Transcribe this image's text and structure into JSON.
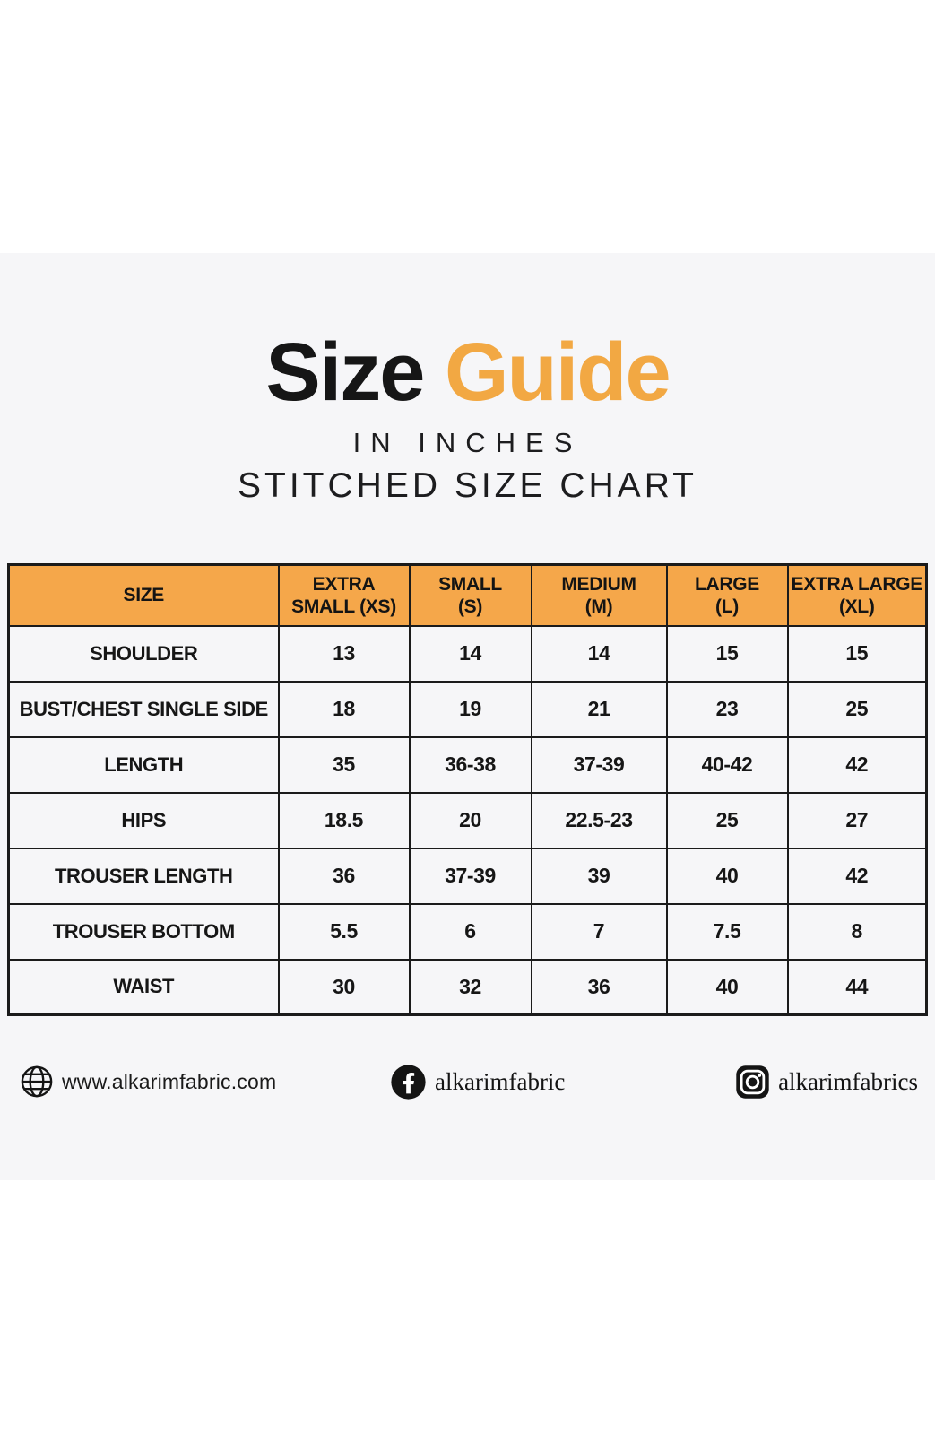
{
  "colors": {
    "accent": "#F2A843",
    "header_bg": "#F5A74A",
    "panel_bg": "#F6F6F8",
    "ink": "#161616",
    "border": "#1B1B1B"
  },
  "title": {
    "word_black": "Size",
    "word_accent": "Guide",
    "subtitle_1": "IN INCHES",
    "subtitle_2": "STITCHED SIZE CHART"
  },
  "table": {
    "header": [
      {
        "line1": "SIZE",
        "line2": ""
      },
      {
        "line1": "EXTRA",
        "line2": "SMALL (XS)"
      },
      {
        "line1": "SMALL",
        "line2": "(S)"
      },
      {
        "line1": "MEDIUM",
        "line2": "(M)"
      },
      {
        "line1": "LARGE",
        "line2": "(L)"
      },
      {
        "line1": "EXTRA LARGE",
        "line2": "(XL)"
      }
    ],
    "rows": [
      {
        "label": "SHOULDER",
        "values": [
          "13",
          "14",
          "14",
          "15",
          "15"
        ]
      },
      {
        "label": "BUST/CHEST SINGLE SIDE",
        "values": [
          "18",
          "19",
          "21",
          "23",
          "25"
        ]
      },
      {
        "label": "LENGTH",
        "values": [
          "35",
          "36-38",
          "37-39",
          "40-42",
          "42"
        ]
      },
      {
        "label": "HIPS",
        "values": [
          "18.5",
          "20",
          "22.5-23",
          "25",
          "27"
        ]
      },
      {
        "label": "TROUSER LENGTH",
        "values": [
          "36",
          "37-39",
          "39",
          "40",
          "42"
        ]
      },
      {
        "label": "TROUSER BOTTOM",
        "values": [
          "5.5",
          "6",
          "7",
          "7.5",
          "8"
        ]
      },
      {
        "label": "WAIST",
        "values": [
          "30",
          "32",
          "36",
          "40",
          "44"
        ]
      }
    ]
  },
  "footer": {
    "website": "www.alkarimfabric.com",
    "facebook": "alkarimfabric",
    "instagram": "alkarimfabrics"
  },
  "chart_data": {
    "type": "table",
    "title": "Size Guide",
    "subtitle": "IN INCHES",
    "subtitle2": "STITCHED SIZE CHART",
    "units": "inches",
    "columns": [
      "SIZE",
      "EXTRA SMALL (XS)",
      "SMALL (S)",
      "MEDIUM (M)",
      "LARGE (L)",
      "EXTRA LARGE (XL)"
    ],
    "rows": [
      [
        "SHOULDER",
        "13",
        "14",
        "14",
        "15",
        "15"
      ],
      [
        "BUST/CHEST SINGLE SIDE",
        "18",
        "19",
        "21",
        "23",
        "25"
      ],
      [
        "LENGTH",
        "35",
        "36-38",
        "37-39",
        "40-42",
        "42"
      ],
      [
        "HIPS",
        "18.5",
        "20",
        "22.5-23",
        "25",
        "27"
      ],
      [
        "TROUSER LENGTH",
        "36",
        "37-39",
        "39",
        "40",
        "42"
      ],
      [
        "TROUSER BOTTOM",
        "5.5",
        "6",
        "7",
        "7.5",
        "8"
      ],
      [
        "WAIST",
        "30",
        "32",
        "36",
        "40",
        "44"
      ]
    ]
  }
}
